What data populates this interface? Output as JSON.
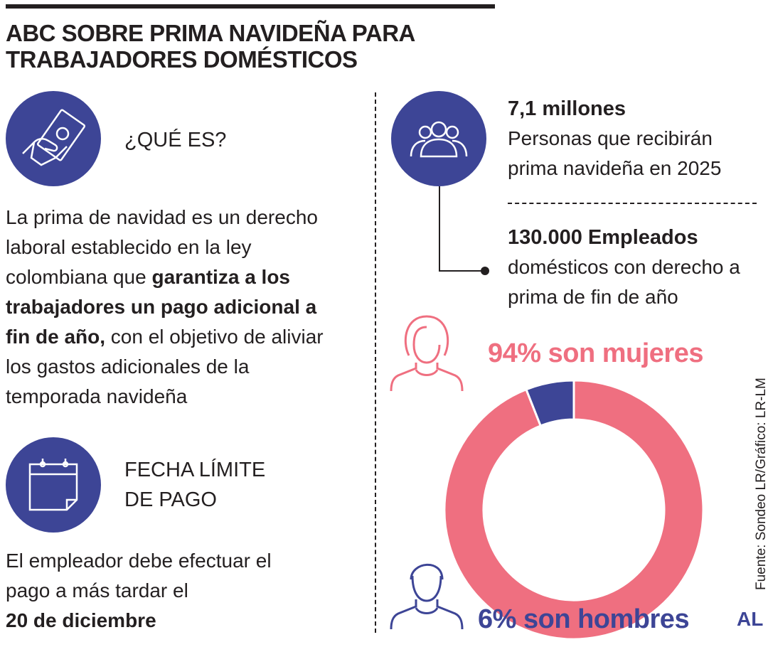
{
  "title": [
    "ABC SOBRE PRIMA NAVIDEÑA PARA",
    "TRABAJADORES DOMÉSTICOS"
  ],
  "que_es": {
    "heading": "¿QUÉ ES?",
    "text_before": "La prima de navidad es un derecho laboral establecido en la ley colombiana que ",
    "text_bold": "garantiza a los trabajadores un pago adicional a fin de año,",
    "text_after": " con el objetivo de aliviar los gastos adicionales de la temporada navideña"
  },
  "fecha": {
    "heading_1": "FECHA LÍMITE",
    "heading_2": "DE PAGO",
    "text": "El empleador debe efectuar el pago a más tardar el",
    "date": "20 de diciembre"
  },
  "stats": [
    {
      "value": "7,1 millones",
      "label": "Personas que recibirán prima navideña en 2025"
    },
    {
      "value": "130.000 Empleados",
      "label": "domésticos con derecho a prima de fin de año"
    }
  ],
  "source": "Fuente: Sondeo LR/Gráfico: LR-LM",
  "logo": "AL",
  "colors": {
    "indigo": "#3d4596",
    "pink": "#ef6f80"
  },
  "chart_data": {
    "type": "pie",
    "donut": true,
    "categories": [
      "Mujeres",
      "Hombres"
    ],
    "values": [
      94,
      6
    ],
    "labels": [
      "94% son mujeres",
      "6% son hombres"
    ],
    "colors": [
      "#ef6f80",
      "#3d4596"
    ]
  }
}
